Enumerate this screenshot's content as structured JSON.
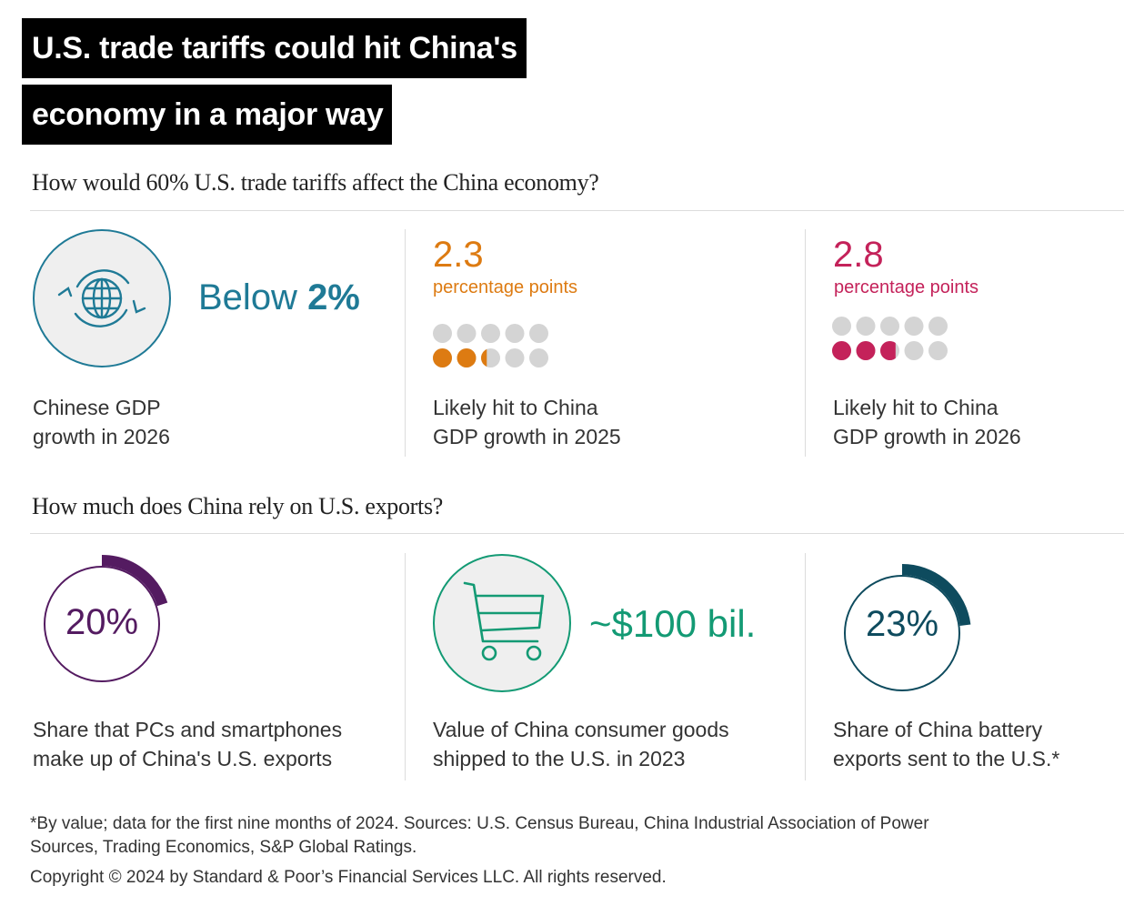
{
  "title": {
    "line1": "U.S. trade tariffs could hit China's",
    "line2": "economy in a major way"
  },
  "section1": {
    "heading": "How would 60% U.S. trade tariffs affect the China economy?",
    "panels": [
      {
        "icon": "globe-rotate-icon",
        "value_prefix": "Below ",
        "value_bold": "2%",
        "caption_line1": "Chinese GDP",
        "caption_line2": "growth in 2026",
        "color": "#1f7a96"
      },
      {
        "value": "2.3",
        "unit": "percentage points",
        "dots_total": 10,
        "dots_filled": 2.3,
        "caption_line1": "Likely hit to China",
        "caption_line2": "GDP growth in 2025",
        "color": "#dd7b12"
      },
      {
        "value": "2.8",
        "unit": "percentage points",
        "dots_total": 10,
        "dots_filled": 2.8,
        "caption_line1": "Likely hit to China",
        "caption_line2": "GDP growth in 2026",
        "color": "#c4225a"
      }
    ]
  },
  "section2": {
    "heading": "How much does China rely on U.S. exports?",
    "panels": [
      {
        "value": "20%",
        "share": 0.2,
        "caption_line1": "Share that PCs and smartphones",
        "caption_line2": "make up of China's U.S. exports",
        "color": "#541b61"
      },
      {
        "icon": "shopping-cart-icon",
        "value": "~$100 bil.",
        "caption_line1": "Value of China consumer goods",
        "caption_line2": "shipped to the U.S. in 2023",
        "color": "#139a74"
      },
      {
        "value": "23%",
        "share": 0.23,
        "caption_line1": "Share of China battery",
        "caption_line2": "exports sent to the U.S.*",
        "color": "#0e4b5e"
      }
    ]
  },
  "footer": {
    "note_line1": "*By value; data for the first nine months of 2024. Sources: U.S. Census Bureau, China Industrial Association of Power",
    "note_line2": "Sources, Trading Economics, S&P Global Ratings.",
    "copyright": "Copyright © 2024 by Standard & Poor’s Financial Services LLC. All rights reserved."
  },
  "colors": {
    "dot_empty": "#d4d4d4",
    "icon_bg": "#efefef"
  }
}
